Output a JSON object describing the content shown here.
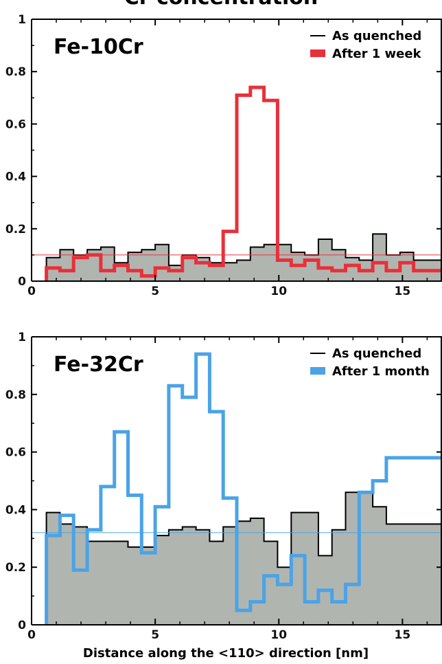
{
  "figure": {
    "title_fragment": "Cr concentration",
    "xlabel": "Distance along the <110> direction [nm]"
  },
  "chart_data": [
    {
      "type": "histogram-step",
      "panel_label": "Fe-10Cr",
      "xlim": [
        0,
        16.6
      ],
      "ylim": [
        0,
        1
      ],
      "xticks": [
        0,
        5,
        10,
        15
      ],
      "yticks": [
        0,
        0.2,
        0.4,
        0.6,
        0.8,
        1
      ],
      "ytick_labels": [
        "0",
        "0.2",
        "0.4",
        "0.6",
        "0.8",
        "1"
      ],
      "bin_edges": [
        0.6,
        1.15,
        1.7,
        2.25,
        2.8,
        3.35,
        3.9,
        4.45,
        5.0,
        5.55,
        6.1,
        6.65,
        7.2,
        7.75,
        8.3,
        8.85,
        9.4,
        9.95,
        10.5,
        11.05,
        11.6,
        12.15,
        12.7,
        13.25,
        13.8,
        14.35,
        14.9,
        15.45,
        16.0,
        16.55
      ],
      "reference_line": 0.1,
      "series": [
        {
          "name": "As quenched",
          "style": "filled-step",
          "color": "#000000",
          "fill": "#b1b5b0",
          "values": [
            0.09,
            0.12,
            0.1,
            0.12,
            0.13,
            0.07,
            0.11,
            0.12,
            0.14,
            0.06,
            0.1,
            0.09,
            0.07,
            0.07,
            0.08,
            0.13,
            0.14,
            0.14,
            0.11,
            0.1,
            0.16,
            0.12,
            0.09,
            0.08,
            0.18,
            0.1,
            0.11,
            0.08,
            0.08
          ]
        },
        {
          "name": "After 1 week",
          "style": "step",
          "color": "#e8303a",
          "values": [
            0.05,
            0.04,
            0.09,
            0.1,
            0.04,
            0.06,
            0.04,
            0.02,
            0.05,
            0.04,
            0.09,
            0.07,
            0.06,
            0.19,
            0.71,
            0.74,
            0.69,
            0.08,
            0.06,
            0.08,
            0.05,
            0.04,
            0.06,
            0.04,
            0.07,
            0.04,
            0.07,
            0.04,
            0.04
          ]
        }
      ]
    },
    {
      "type": "histogram-step",
      "panel_label": "Fe-32Cr",
      "xlim": [
        0,
        16.6
      ],
      "ylim": [
        0,
        1
      ],
      "xticks": [
        0,
        5,
        10,
        15
      ],
      "xtick_labels": [
        "0",
        "5",
        "10",
        "15"
      ],
      "yticks": [
        0,
        0.2,
        0.4,
        0.6,
        0.8,
        1
      ],
      "ytick_labels": [
        "0",
        "0.2",
        "0.4",
        "0.6",
        "0.8",
        "1"
      ],
      "bin_edges": [
        0.6,
        1.15,
        1.7,
        2.25,
        2.8,
        3.35,
        3.9,
        4.45,
        5.0,
        5.55,
        6.1,
        6.65,
        7.2,
        7.75,
        8.3,
        8.85,
        9.4,
        9.95,
        10.5,
        11.05,
        11.6,
        12.15,
        12.7,
        13.25,
        13.8,
        14.35,
        14.9,
        15.45,
        16.0,
        16.55
      ],
      "reference_line": 0.32,
      "series": [
        {
          "name": "As quenched",
          "style": "filled-step",
          "color": "#000000",
          "fill": "#b1b5b0",
          "values": [
            0.39,
            0.35,
            0.34,
            0.29,
            0.29,
            0.29,
            0.27,
            0.27,
            0.31,
            0.33,
            0.34,
            0.33,
            0.29,
            0.34,
            0.36,
            0.37,
            0.29,
            0.2,
            0.39,
            0.39,
            0.24,
            0.33,
            0.46,
            0.46,
            0.41,
            0.35,
            0.35,
            0.35,
            0.35
          ]
        },
        {
          "name": "After 1 month",
          "style": "step",
          "color": "#4aa3e6",
          "values": [
            0.31,
            0.38,
            0.19,
            0.33,
            0.48,
            0.67,
            0.45,
            0.25,
            0.41,
            0.83,
            0.79,
            0.94,
            0.74,
            0.44,
            0.05,
            0.08,
            0.17,
            0.14,
            0.24,
            0.08,
            0.12,
            0.08,
            0.14,
            0.46,
            0.5,
            0.58,
            0.58,
            0.58,
            0.58
          ]
        }
      ]
    }
  ]
}
